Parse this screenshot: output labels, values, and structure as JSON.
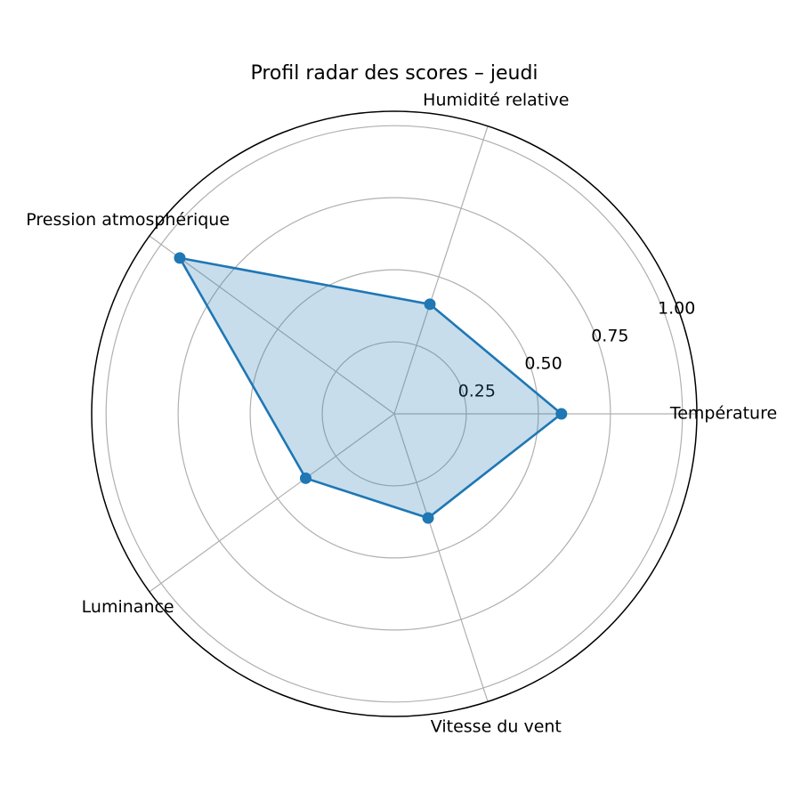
{
  "chart_data": {
    "type": "radar",
    "title": "Profil radar des scores – jeudi",
    "categories": [
      "Température",
      "Humidité relative",
      "Pression atmosphérique",
      "Luminance",
      "Vitesse du vent"
    ],
    "values": [
      0.58,
      0.4,
      0.92,
      0.38,
      0.38
    ],
    "color": "#1f77b4",
    "ylim": [
      0,
      1.05
    ],
    "yticks": [
      0.25,
      {
        "value": 0.5,
        "label": "0.50"
      },
      0.75,
      {
        "value": 1.0,
        "label": "1.00"
      }
    ],
    "grid": true
  }
}
